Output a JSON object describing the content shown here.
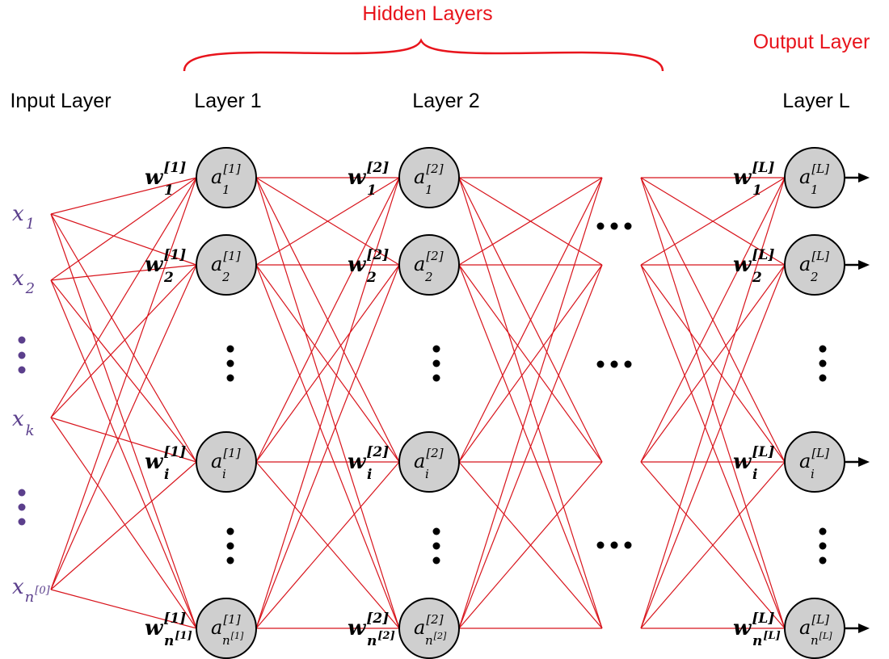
{
  "headers": {
    "hidden_layers": "Hidden Layers",
    "output_layer": "Output Layer",
    "input_layer": "Input Layer",
    "layer_1": "Layer 1",
    "layer_2": "Layer 2",
    "layer_L": "Layer L"
  },
  "inputs": [
    {
      "base": "x",
      "sub": "1"
    },
    {
      "base": "x",
      "sub": "2"
    },
    {
      "base": "x",
      "sub": "k"
    },
    {
      "base": "x",
      "sub": "n",
      "subsup": "[0]"
    }
  ],
  "layers": [
    {
      "sup": "[1]",
      "neurons": [
        {
          "sub": "1"
        },
        {
          "sub": "2"
        },
        {
          "sub": "i"
        },
        {
          "sub": "n",
          "subsup": "[1]"
        }
      ]
    },
    {
      "sup": "[2]",
      "neurons": [
        {
          "sub": "1"
        },
        {
          "sub": "2"
        },
        {
          "sub": "i"
        },
        {
          "sub": "n",
          "subsup": "[2]"
        }
      ]
    },
    {
      "sup": "[L]",
      "neurons": [
        {
          "sub": "1"
        },
        {
          "sub": "2"
        },
        {
          "sub": "i"
        },
        {
          "sub": "n",
          "subsup": "[L]"
        }
      ]
    }
  ],
  "symbols": {
    "activation": "a",
    "weight": "w"
  },
  "colors": {
    "edge": "#d8141c",
    "header_red": "#e8141c",
    "input_purple": "#5b3f8c",
    "neuron_fill": "#cfcfcf",
    "neuron_stroke": "#000000"
  }
}
